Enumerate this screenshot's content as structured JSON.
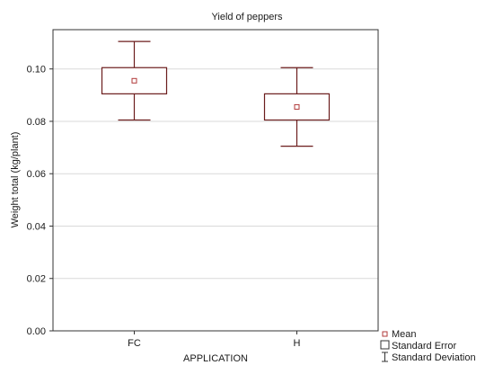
{
  "chart_data": {
    "type": "box",
    "title": "Yield of peppers",
    "xlabel": "APPLICATION",
    "ylabel": "Weight total (kg/plant)",
    "categories": [
      "FC",
      "H"
    ],
    "mean": [
      0.0955,
      0.0855
    ],
    "se_low": [
      0.0905,
      0.0805
    ],
    "se_high": [
      0.1005,
      0.0905
    ],
    "sd_low": [
      0.0805,
      0.0705
    ],
    "sd_high": [
      0.1105,
      0.1005
    ],
    "ylim": [
      0,
      0.115
    ],
    "yticks": [
      0.0,
      0.02,
      0.04,
      0.06,
      0.08,
      0.1
    ],
    "ytick_labels": [
      "0.00",
      "0.02",
      "0.04",
      "0.06",
      "0.08",
      "0.10"
    ],
    "grid": true,
    "legend_position": "bottom-right",
    "legend": {
      "mean": "Mean",
      "se": "Standard Error",
      "sd": "Standard Deviation"
    },
    "colors": {
      "box": "#6b1c1c",
      "mean_marker": "#b03a3a",
      "grid": "#d9d9d9",
      "frame": "#333333"
    }
  }
}
